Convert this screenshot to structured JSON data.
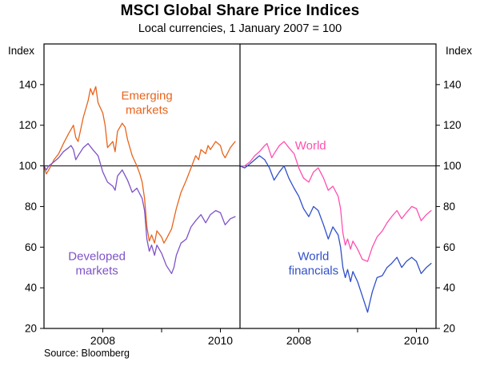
{
  "chart_data": {
    "type": "line",
    "title": "MSCI Global Share Price Indices",
    "subtitle": "Local currencies, 1 January 2007 = 100",
    "source": "Source: Bloomberg",
    "index_label": "Index",
    "y_ticks": [
      20,
      40,
      60,
      80,
      100,
      120,
      140
    ],
    "y_headroom": 20,
    "xlim": [
      2007,
      2010.3333
    ],
    "reference_line": 100,
    "x_ticks": [
      {
        "year": 2008,
        "label": "2008"
      },
      {
        "year": 2009,
        "label": ""
      },
      {
        "year": 2010,
        "label": "2010"
      }
    ],
    "colors": {
      "emerging": "#E8641C",
      "developed": "#7E52C8",
      "world": "#FF4FB0",
      "financials": "#3050C8",
      "axis": "#000000"
    },
    "panels": [
      {
        "series": [
          {
            "name": "Emerging markets",
            "color_key": "emerging",
            "points": [
              [
                2007.0,
                100
              ],
              [
                2007.04,
                96
              ],
              [
                2007.08,
                98
              ],
              [
                2007.17,
                103
              ],
              [
                2007.25,
                106
              ],
              [
                2007.33,
                111
              ],
              [
                2007.42,
                116
              ],
              [
                2007.5,
                120
              ],
              [
                2007.54,
                114
              ],
              [
                2007.58,
                112
              ],
              [
                2007.67,
                124
              ],
              [
                2007.75,
                132
              ],
              [
                2007.79,
                138
              ],
              [
                2007.83,
                135
              ],
              [
                2007.88,
                139
              ],
              [
                2007.92,
                131
              ],
              [
                2008.0,
                126
              ],
              [
                2008.04,
                120
              ],
              [
                2008.08,
                109
              ],
              [
                2008.17,
                112
              ],
              [
                2008.21,
                107
              ],
              [
                2008.25,
                117
              ],
              [
                2008.33,
                121
              ],
              [
                2008.38,
                119
              ],
              [
                2008.42,
                113
              ],
              [
                2008.5,
                105
              ],
              [
                2008.58,
                100
              ],
              [
                2008.63,
                96
              ],
              [
                2008.67,
                92
              ],
              [
                2008.71,
                84
              ],
              [
                2008.75,
                70
              ],
              [
                2008.79,
                63
              ],
              [
                2008.83,
                66
              ],
              [
                2008.88,
                62
              ],
              [
                2008.92,
                68
              ],
              [
                2009.0,
                65
              ],
              [
                2009.04,
                62
              ],
              [
                2009.08,
                64
              ],
              [
                2009.17,
                69
              ],
              [
                2009.25,
                79
              ],
              [
                2009.33,
                87
              ],
              [
                2009.42,
                93
              ],
              [
                2009.5,
                99
              ],
              [
                2009.58,
                105
              ],
              [
                2009.63,
                103
              ],
              [
                2009.67,
                108
              ],
              [
                2009.75,
                106
              ],
              [
                2009.79,
                110
              ],
              [
                2009.83,
                108
              ],
              [
                2009.92,
                112
              ],
              [
                2010.0,
                110
              ],
              [
                2010.04,
                106
              ],
              [
                2010.08,
                104
              ],
              [
                2010.17,
                109
              ],
              [
                2010.25,
                112
              ]
            ]
          },
          {
            "name": "Developed markets",
            "color_key": "developed",
            "points": [
              [
                2007.0,
                100
              ],
              [
                2007.04,
                98
              ],
              [
                2007.08,
                100
              ],
              [
                2007.17,
                102
              ],
              [
                2007.25,
                104
              ],
              [
                2007.33,
                107
              ],
              [
                2007.42,
                109
              ],
              [
                2007.46,
                110
              ],
              [
                2007.5,
                108
              ],
              [
                2007.54,
                103
              ],
              [
                2007.58,
                105
              ],
              [
                2007.67,
                109
              ],
              [
                2007.75,
                111
              ],
              [
                2007.83,
                108
              ],
              [
                2007.92,
                105
              ],
              [
                2008.0,
                97
              ],
              [
                2008.08,
                92
              ],
              [
                2008.17,
                90
              ],
              [
                2008.21,
                88
              ],
              [
                2008.25,
                95
              ],
              [
                2008.33,
                98
              ],
              [
                2008.42,
                93
              ],
              [
                2008.5,
                87
              ],
              [
                2008.58,
                89
              ],
              [
                2008.67,
                84
              ],
              [
                2008.71,
                78
              ],
              [
                2008.75,
                64
              ],
              [
                2008.79,
                58
              ],
              [
                2008.83,
                61
              ],
              [
                2008.88,
                56
              ],
              [
                2008.92,
                61
              ],
              [
                2009.0,
                57
              ],
              [
                2009.08,
                51
              ],
              [
                2009.17,
                47
              ],
              [
                2009.21,
                50
              ],
              [
                2009.25,
                56
              ],
              [
                2009.33,
                62
              ],
              [
                2009.42,
                64
              ],
              [
                2009.5,
                70
              ],
              [
                2009.58,
                73
              ],
              [
                2009.67,
                76
              ],
              [
                2009.75,
                72
              ],
              [
                2009.83,
                76
              ],
              [
                2009.92,
                78
              ],
              [
                2010.0,
                77
              ],
              [
                2010.08,
                71
              ],
              [
                2010.17,
                74
              ],
              [
                2010.25,
                75
              ]
            ]
          }
        ],
        "annotations": [
          {
            "lines": [
              "Emerging",
              "markets"
            ],
            "x": 2008.75,
            "value": 131,
            "color_key": "emerging"
          },
          {
            "lines": [
              "Developed",
              "markets"
            ],
            "x": 2007.9,
            "value": 52,
            "color_key": "developed"
          }
        ]
      },
      {
        "series": [
          {
            "name": "World",
            "color_key": "world",
            "points": [
              [
                2007.0,
                100
              ],
              [
                2007.08,
                100
              ],
              [
                2007.17,
                102
              ],
              [
                2007.25,
                105
              ],
              [
                2007.33,
                107
              ],
              [
                2007.42,
                110
              ],
              [
                2007.46,
                111
              ],
              [
                2007.54,
                104
              ],
              [
                2007.58,
                106
              ],
              [
                2007.67,
                110
              ],
              [
                2007.75,
                112
              ],
              [
                2007.83,
                109
              ],
              [
                2007.92,
                106
              ],
              [
                2008.0,
                99
              ],
              [
                2008.08,
                94
              ],
              [
                2008.17,
                92
              ],
              [
                2008.25,
                97
              ],
              [
                2008.33,
                99
              ],
              [
                2008.42,
                94
              ],
              [
                2008.5,
                88
              ],
              [
                2008.58,
                90
              ],
              [
                2008.67,
                85
              ],
              [
                2008.71,
                79
              ],
              [
                2008.75,
                67
              ],
              [
                2008.79,
                61
              ],
              [
                2008.83,
                64
              ],
              [
                2008.88,
                59
              ],
              [
                2008.92,
                63
              ],
              [
                2009.0,
                59
              ],
              [
                2009.08,
                54
              ],
              [
                2009.17,
                53
              ],
              [
                2009.25,
                60
              ],
              [
                2009.33,
                65
              ],
              [
                2009.42,
                68
              ],
              [
                2009.5,
                72
              ],
              [
                2009.58,
                75
              ],
              [
                2009.67,
                78
              ],
              [
                2009.75,
                74
              ],
              [
                2009.83,
                77
              ],
              [
                2009.92,
                80
              ],
              [
                2010.0,
                79
              ],
              [
                2010.08,
                73
              ],
              [
                2010.17,
                76
              ],
              [
                2010.25,
                78
              ]
            ]
          },
          {
            "name": "World financials",
            "color_key": "financials",
            "points": [
              [
                2007.0,
                100
              ],
              [
                2007.08,
                99
              ],
              [
                2007.17,
                101
              ],
              [
                2007.25,
                103
              ],
              [
                2007.33,
                105
              ],
              [
                2007.42,
                103
              ],
              [
                2007.5,
                99
              ],
              [
                2007.58,
                93
              ],
              [
                2007.67,
                97
              ],
              [
                2007.75,
                100
              ],
              [
                2007.83,
                94
              ],
              [
                2007.92,
                89
              ],
              [
                2008.0,
                85
              ],
              [
                2008.08,
                79
              ],
              [
                2008.17,
                75
              ],
              [
                2008.25,
                80
              ],
              [
                2008.33,
                78
              ],
              [
                2008.42,
                71
              ],
              [
                2008.5,
                64
              ],
              [
                2008.58,
                70
              ],
              [
                2008.67,
                66
              ],
              [
                2008.71,
                60
              ],
              [
                2008.75,
                50
              ],
              [
                2008.79,
                45
              ],
              [
                2008.83,
                49
              ],
              [
                2008.88,
                43
              ],
              [
                2008.92,
                48
              ],
              [
                2009.0,
                43
              ],
              [
                2009.08,
                36
              ],
              [
                2009.17,
                28
              ],
              [
                2009.21,
                33
              ],
              [
                2009.25,
                38
              ],
              [
                2009.33,
                45
              ],
              [
                2009.42,
                46
              ],
              [
                2009.5,
                50
              ],
              [
                2009.58,
                52
              ],
              [
                2009.67,
                55
              ],
              [
                2009.75,
                50
              ],
              [
                2009.83,
                53
              ],
              [
                2009.92,
                55
              ],
              [
                2010.0,
                53
              ],
              [
                2010.08,
                47
              ],
              [
                2010.17,
                50
              ],
              [
                2010.25,
                52
              ]
            ]
          }
        ],
        "annotations": [
          {
            "lines": [
              "World"
            ],
            "x": 2008.2,
            "value": 110,
            "color_key": "world"
          },
          {
            "lines": [
              "World",
              "financials"
            ],
            "x": 2008.25,
            "value": 52,
            "color_key": "financials"
          }
        ]
      }
    ]
  }
}
